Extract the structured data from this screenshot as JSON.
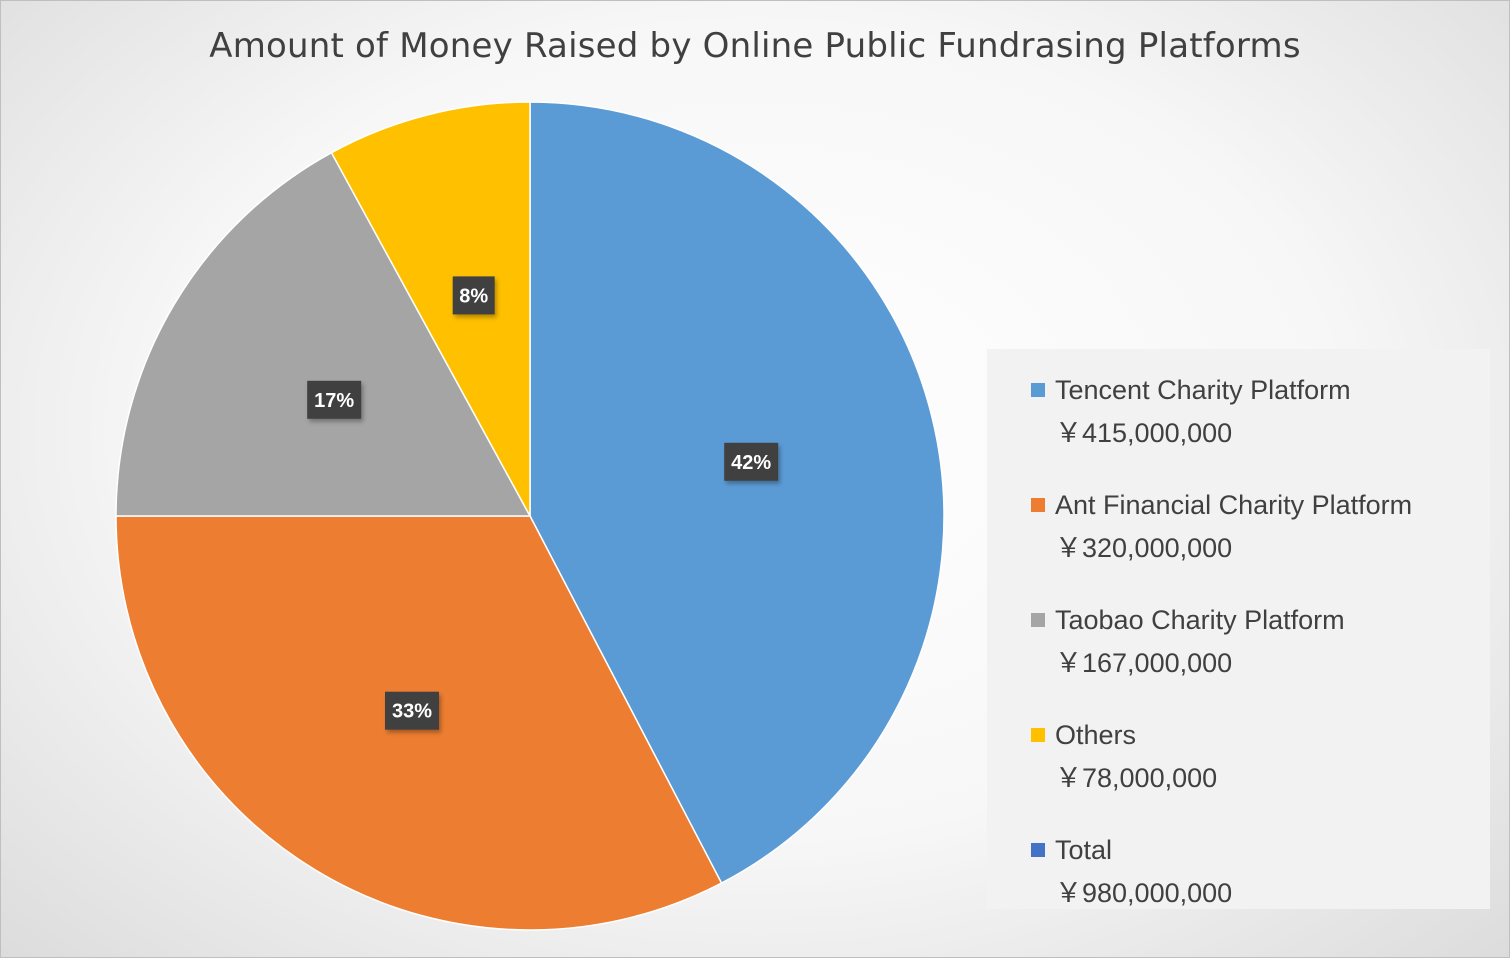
{
  "chart_data": {
    "type": "pie",
    "title": "Amount of Money Raised by Online Public Fundrasing Platforms",
    "slices": [
      {
        "name": "Tencent Charity Platform",
        "value": 415000000,
        "percent_label": "42%",
        "amount_label": "￥415,000,000",
        "color": "#5B9BD5"
      },
      {
        "name": "Ant Financial Charity Platform",
        "value": 320000000,
        "percent_label": "33%",
        "amount_label": "￥320,000,000",
        "color": "#ED7D31"
      },
      {
        "name": "Taobao Charity Platform",
        "value": 167000000,
        "percent_label": "17%",
        "amount_label": "￥167,000,000",
        "color": "#A5A5A5"
      },
      {
        "name": "Others",
        "value": 78000000,
        "percent_label": "8%",
        "amount_label": "￥78,000,000",
        "color": "#FFC000"
      }
    ],
    "legend": [
      {
        "name": "Tencent Charity Platform",
        "amount": "￥415,000,000",
        "color": "#5B9BD5"
      },
      {
        "name": "Ant Financial Charity Platform",
        "amount": "￥320,000,000",
        "color": "#ED7D31"
      },
      {
        "name": "Taobao Charity Platform",
        "amount": "￥167,000,000",
        "color": "#A5A5A5"
      },
      {
        "name": "Others",
        "amount": "￥78,000,000",
        "color": "#FFC000"
      },
      {
        "name": "Total",
        "amount": "￥980,000,000",
        "color": "#4472C4"
      }
    ],
    "legend_position": "right",
    "data_label_background": "#404040",
    "data_label_color": "#FFFFFF"
  }
}
